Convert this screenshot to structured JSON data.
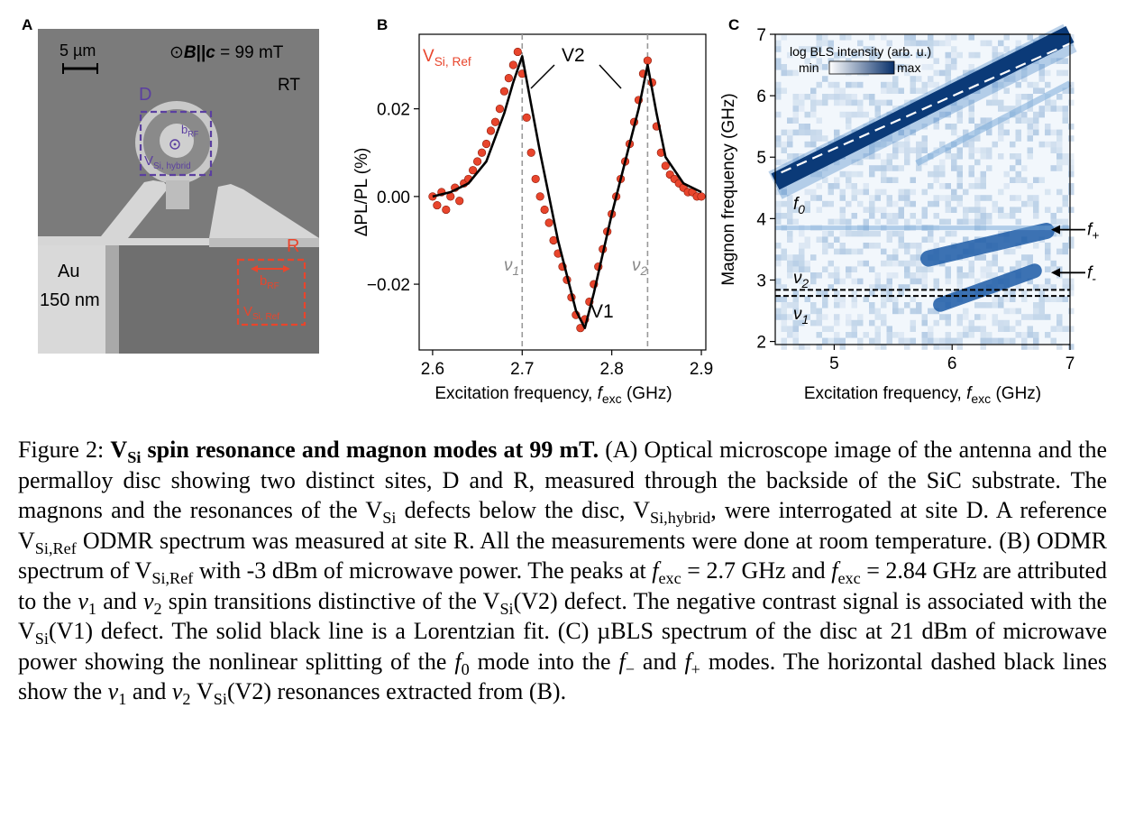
{
  "panel_labels": {
    "a": "A",
    "b": "B",
    "c": "C"
  },
  "panel_a": {
    "scalebar": "5 µm",
    "field_prefix": "⊙",
    "field_B": "B",
    "field_par": "||",
    "field_c": "c",
    "field_value": " = 99 mT",
    "rt": "RT",
    "site_d": "D",
    "site_r": "R",
    "brf": "b",
    "brf_sub": "RF",
    "vsi_hybrid": "V",
    "vsi_hybrid_sub": "Si, hybrid",
    "vsi_ref": "V",
    "vsi_ref_sub": "Si, Ref",
    "au": "Au",
    "thickness": "150 nm",
    "colors": {
      "purple": "#5b3fa0",
      "red": "#e8452c"
    }
  },
  "panel_b": {
    "series_label": "V",
    "series_label_sub": "Si, Ref",
    "v2_label": "V2",
    "v1_label": "V1",
    "nu1_label": "ν",
    "nu1_sub": "1",
    "nu2_label": "ν",
    "nu2_sub": "2",
    "ylabel": "ΔPL/PL (%)",
    "xlabel": "Excitation frequency, ",
    "xlabel_f": "f",
    "xlabel_sub": "exc",
    "xlabel_unit": " (GHz)",
    "xticks": [
      "2.6",
      "2.7",
      "2.8",
      "2.9"
    ],
    "yticks": [
      "0.02",
      "0.00",
      "−0.02"
    ],
    "colors": {
      "points": "#e8452c",
      "fit": "#000000",
      "dashed": "#999999"
    }
  },
  "panel_c": {
    "colorbar_title": "log BLS intensity (arb. u.)",
    "colorbar_min": "min",
    "colorbar_max": "max",
    "ylabel": "Magnon frequency (GHz)",
    "xlabel": "Excitation frequency, ",
    "xlabel_f": "f",
    "xlabel_sub": "exc",
    "xlabel_unit": " (GHz)",
    "xticks": [
      "5",
      "6",
      "7"
    ],
    "yticks": [
      "2",
      "3",
      "4",
      "5",
      "6",
      "7"
    ],
    "f0": "f",
    "f0_sub": "0",
    "fplus": "f",
    "fplus_sub": "+",
    "fminus": "f",
    "fminus_sub": "-",
    "nu1": "ν",
    "nu1_sub": "1",
    "nu2": "ν",
    "nu2_sub": "2",
    "colors": {
      "low": "#ffffff",
      "high": "#08306b"
    }
  },
  "chart_data": [
    {
      "type": "scatter",
      "xlabel": "Excitation frequency, f_exc (GHz)",
      "ylabel": "ΔPL/PL (%)",
      "xlim": [
        2.585,
        2.905
      ],
      "ylim": [
        -0.035,
        0.037
      ],
      "xticks": [
        2.6,
        2.7,
        2.8,
        2.9
      ],
      "yticks": [
        0.02,
        0.0,
        -0.02
      ],
      "series": [
        {
          "name": "V_Si, Ref",
          "kind": "points",
          "x": [
            2.6,
            2.605,
            2.61,
            2.615,
            2.62,
            2.625,
            2.63,
            2.635,
            2.64,
            2.645,
            2.65,
            2.655,
            2.66,
            2.665,
            2.67,
            2.675,
            2.68,
            2.685,
            2.69,
            2.695,
            2.7,
            2.705,
            2.71,
            2.715,
            2.72,
            2.725,
            2.73,
            2.735,
            2.74,
            2.745,
            2.75,
            2.755,
            2.76,
            2.765,
            2.77,
            2.775,
            2.78,
            2.785,
            2.79,
            2.795,
            2.8,
            2.805,
            2.81,
            2.815,
            2.82,
            2.825,
            2.83,
            2.835,
            2.84,
            2.845,
            2.85,
            2.855,
            2.86,
            2.865,
            2.87,
            2.875,
            2.88,
            2.885,
            2.89,
            2.895,
            2.9
          ],
          "y": [
            0.0,
            -0.002,
            0.001,
            -0.003,
            0.0,
            0.002,
            -0.001,
            0.003,
            0.004,
            0.006,
            0.008,
            0.01,
            0.012,
            0.015,
            0.017,
            0.02,
            0.024,
            0.027,
            0.03,
            0.033,
            0.028,
            0.018,
            0.01,
            0.004,
            0.0,
            -0.003,
            -0.006,
            -0.01,
            -0.013,
            -0.016,
            -0.019,
            -0.023,
            -0.027,
            -0.03,
            -0.028,
            -0.024,
            -0.02,
            -0.016,
            -0.012,
            -0.008,
            -0.004,
            0.0,
            0.004,
            0.008,
            0.012,
            0.017,
            0.022,
            0.028,
            0.031,
            0.026,
            0.016,
            0.01,
            0.007,
            0.005,
            0.004,
            0.003,
            0.002,
            0.001,
            0.001,
            0.0,
            0.0
          ]
        },
        {
          "name": "Lorentzian fit",
          "kind": "line",
          "x": [
            2.6,
            2.62,
            2.64,
            2.66,
            2.68,
            2.69,
            2.7,
            2.71,
            2.72,
            2.74,
            2.76,
            2.77,
            2.78,
            2.8,
            2.82,
            2.83,
            2.84,
            2.85,
            2.86,
            2.88,
            2.9
          ],
          "y": [
            0.0,
            0.001,
            0.003,
            0.008,
            0.019,
            0.026,
            0.032,
            0.021,
            0.01,
            -0.01,
            -0.026,
            -0.03,
            -0.022,
            -0.004,
            0.012,
            0.02,
            0.03,
            0.019,
            0.009,
            0.003,
            0.001
          ]
        }
      ],
      "vlines": [
        2.7,
        2.84
      ],
      "annotations": [
        "V2",
        "V1",
        "ν1",
        "ν2"
      ]
    },
    {
      "type": "heatmap",
      "xlabel": "Excitation frequency, f_exc (GHz)",
      "ylabel": "Magnon frequency (GHz)",
      "xlim": [
        4.5,
        7.0
      ],
      "ylim": [
        1.95,
        7.0
      ],
      "xticks": [
        5,
        6,
        7
      ],
      "yticks": [
        2,
        3,
        4,
        5,
        6,
        7
      ],
      "modes": [
        {
          "name": "f0",
          "x": [
            4.5,
            7.0
          ],
          "y": [
            4.6,
            7.0
          ]
        },
        {
          "name": "f+",
          "x": [
            5.8,
            6.8
          ],
          "y": [
            3.35,
            3.8
          ]
        },
        {
          "name": "f-",
          "x": [
            5.9,
            6.7
          ],
          "y": [
            2.6,
            3.15
          ]
        }
      ],
      "hlines": [
        {
          "name": "ν2",
          "y": 2.84
        },
        {
          "name": "ν1",
          "y": 2.74
        }
      ],
      "colorscale": "log BLS intensity (arb. u.)"
    }
  ],
  "caption": {
    "fig_label": "Figure 2: ",
    "bold_v": "V",
    "bold_v_sub": "Si",
    "bold_title": " spin resonance and magnon modes at 99 mT.",
    "t1": " (A) Optical microscope image of the antenna and the permalloy disc showing two distinct sites, D and R, measured through the backside of the SiC substrate. The magnons and the resonances of the V",
    "t1_sub": "Si",
    "t2": " defects below the disc, V",
    "t2_sub": "Si,hybrid",
    "t3": ", were interrogated at site D. A reference V",
    "t3_sub": "Si,Ref",
    "t4": " ODMR spectrum was measured at site R. All the measurements were done at room temperature. (B) ODMR spectrum of V",
    "t4_sub": "Si,Ref",
    "t5": " with -3 dBm of microwave power. The peaks at ",
    "f1": "f",
    "f1_sub": "exc",
    "eq1": " = 2.7 GHz and ",
    "f2": "f",
    "f2_sub": "exc",
    "eq2": " = 2.84 GHz are attributed to the ",
    "nu1": "ν",
    "nu1_sub": "1",
    "t6": " and ",
    "nu2": "ν",
    "nu2_sub": "2",
    "t7": " spin transitions distinctive of the V",
    "t7_sub": "Si",
    "t8": "(V2) defect. The negative contrast signal is associated with the V",
    "t8_sub": "Si",
    "t9": "(V1) defect. The solid black line is a Lorentzian fit. (C) µBLS spectrum of the disc at 21 dBm of microwave power showing the nonlinear splitting of the ",
    "f0": "f",
    "f0_sub": "0",
    "t10": " mode into the ",
    "fm": "f",
    "fm_sub": "−",
    "t11": " and ",
    "fp": "f",
    "fp_sub": "+",
    "t12": " modes. The horizontal dashed black lines show the ",
    "nu1b": "ν",
    "nu1b_sub": "1",
    "t13": " and ",
    "nu2b": "ν",
    "nu2b_sub": "2",
    "t14": " V",
    "t14_sub": "Si",
    "t15": "(V2) resonances extracted from (B)."
  }
}
